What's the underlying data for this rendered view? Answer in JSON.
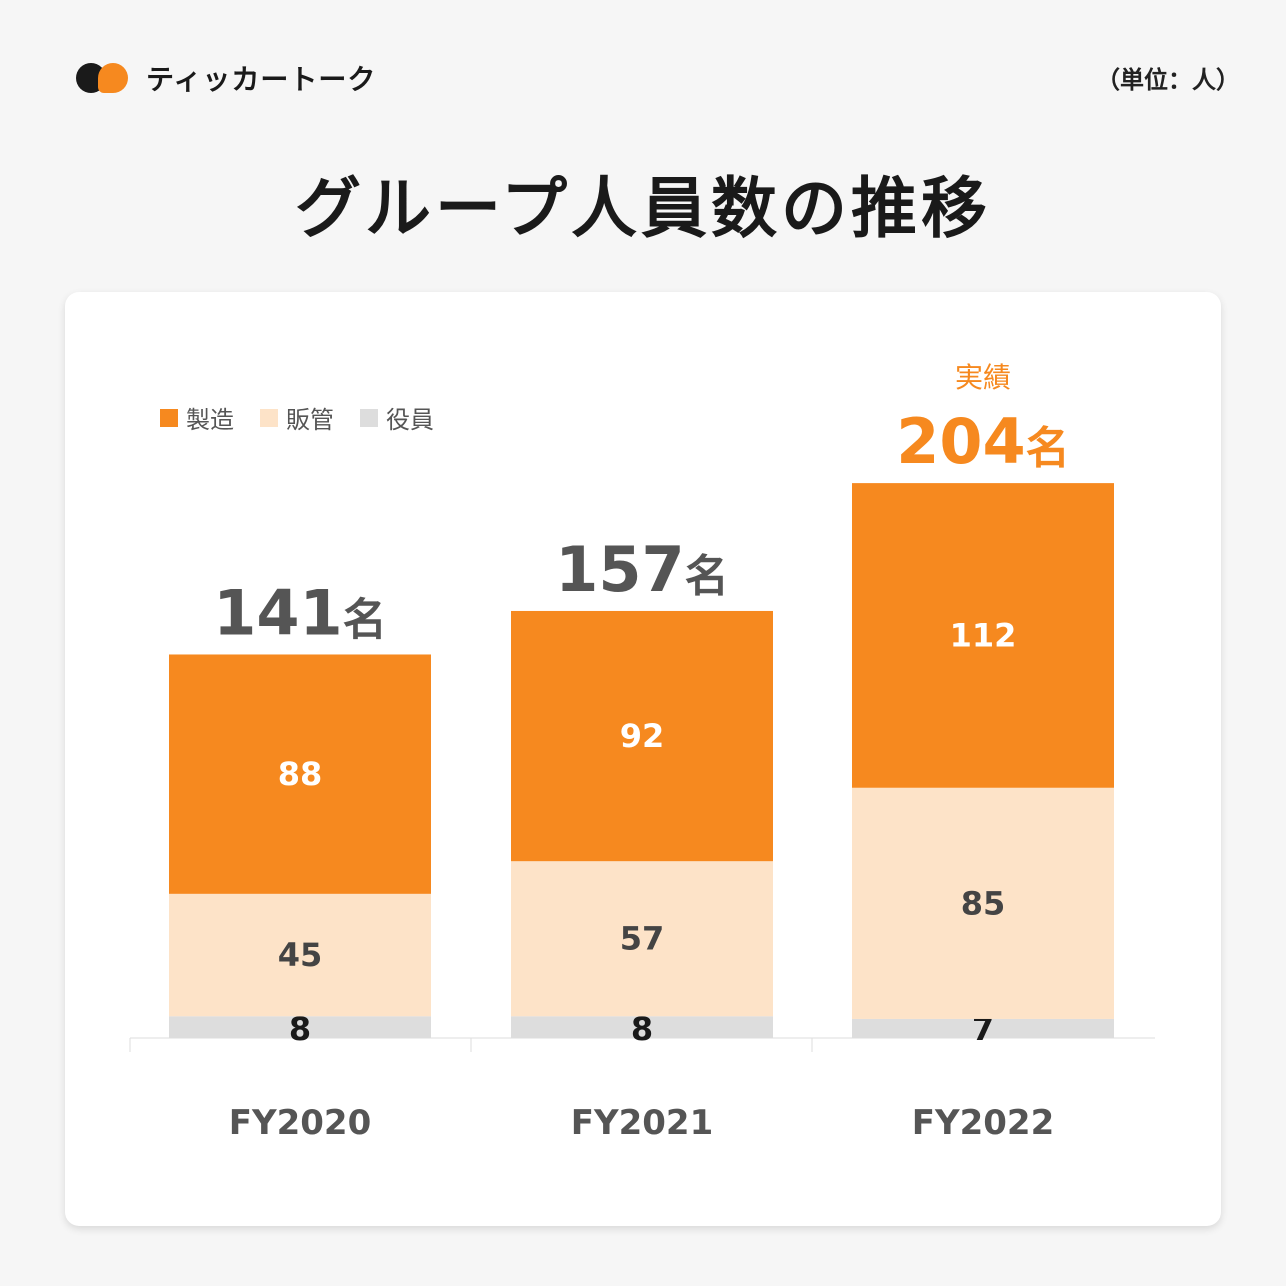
{
  "brand": {
    "name": "ティッカートーク",
    "colors": {
      "orange": "#f6891f",
      "black": "#1a1a1a"
    }
  },
  "unit_label": "（単位：人）",
  "title": "グループ人員数の推移",
  "chart_data": {
    "type": "bar",
    "stacked": true,
    "categories": [
      "FY2020",
      "FY2021",
      "FY2022"
    ],
    "series": [
      {
        "name": "役員",
        "values": [
          8,
          8,
          7
        ],
        "color": "#dddddd",
        "label_color": "#1a1a1a"
      },
      {
        "name": "販管",
        "values": [
          45,
          57,
          85
        ],
        "color": "#fde3c8",
        "label_color": "#444444"
      },
      {
        "name": "製造",
        "values": [
          88,
          92,
          112
        ],
        "color": "#f6891f",
        "label_color": "#ffffff"
      }
    ],
    "legend_order": [
      "製造",
      "販管",
      "役員"
    ],
    "totals": [
      "141",
      "157",
      "204"
    ],
    "total_suffix": "名",
    "highlight": {
      "category": "FY2022",
      "label": "実績",
      "color": "#f6891f"
    },
    "ylim": [
      0,
      250
    ],
    "legend_position": "top-left",
    "grid": false
  }
}
